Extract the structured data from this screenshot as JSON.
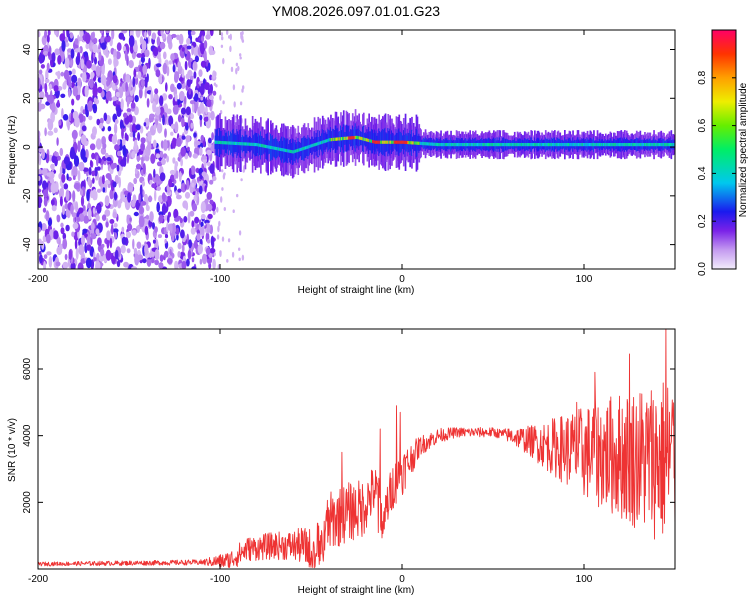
{
  "title": "YM08.2026.097.01.01.G23",
  "chart_data": [
    {
      "type": "heatmap",
      "name": "spectrogram",
      "xlabel": "Height of straight line (km)",
      "ylabel": "Frequency (Hz)",
      "xlim": [
        -200,
        150
      ],
      "ylim": [
        -50,
        48
      ],
      "xticks": [
        "-200",
        "-100",
        "0",
        "100"
      ],
      "xtick_values": [
        -200,
        -100,
        0,
        100
      ],
      "yticks": [
        "-40",
        "-20",
        "0",
        "20",
        "40"
      ],
      "ytick_values": [
        -40,
        -20,
        0,
        20,
        40
      ],
      "noise_region_end": -103,
      "signal_track": [
        [
          -103,
          2
        ],
        [
          -80,
          1
        ],
        [
          -60,
          -2
        ],
        [
          -40,
          3
        ],
        [
          -25,
          4
        ],
        [
          -15,
          2
        ],
        [
          0,
          2
        ],
        [
          20,
          1
        ],
        [
          60,
          1
        ],
        [
          100,
          1
        ],
        [
          150,
          1
        ]
      ],
      "colorbar": {
        "label": "Normalized spectral amplitude",
        "range": [
          0,
          1
        ],
        "ticks": [
          "0.0",
          "0.2",
          "0.4",
          "0.6",
          "0.8"
        ],
        "tick_values": [
          0,
          0.2,
          0.4,
          0.6,
          0.8
        ]
      }
    },
    {
      "type": "line",
      "name": "snr",
      "xlabel": "Height of straight line (km)",
      "ylabel": "SNR (10 * v/v)",
      "xlim": [
        -200,
        150
      ],
      "ylim": [
        0,
        7200
      ],
      "xticks": [
        "-200",
        "-100",
        "0",
        "100"
      ],
      "xtick_values": [
        -200,
        -100,
        0,
        100
      ],
      "yticks": [
        "2000",
        "4000",
        "6000"
      ],
      "ytick_values": [
        2000,
        4000,
        6000
      ],
      "color": "#ee3333",
      "envelope": [
        [
          -200,
          150
        ],
        [
          -110,
          200
        ],
        [
          -95,
          250
        ],
        [
          -85,
          600
        ],
        [
          -70,
          700
        ],
        [
          -55,
          700
        ],
        [
          -48,
          500
        ],
        [
          -40,
          1400
        ],
        [
          -30,
          1700
        ],
        [
          -22,
          1800
        ],
        [
          -15,
          2400
        ],
        [
          -10,
          1600
        ],
        [
          -5,
          2500
        ],
        [
          0,
          2900
        ],
        [
          5,
          3300
        ],
        [
          10,
          3700
        ],
        [
          20,
          4000
        ],
        [
          30,
          4100
        ],
        [
          50,
          4100
        ],
        [
          60,
          4000
        ],
        [
          80,
          3700
        ],
        [
          100,
          3500
        ],
        [
          120,
          3400
        ],
        [
          135,
          3300
        ],
        [
          150,
          3300
        ]
      ],
      "spread": [
        [
          -200,
          60
        ],
        [
          -110,
          80
        ],
        [
          -90,
          350
        ],
        [
          -60,
          450
        ],
        [
          -40,
          900
        ],
        [
          -22,
          900
        ],
        [
          -12,
          700
        ],
        [
          0,
          700
        ],
        [
          10,
          300
        ],
        [
          30,
          150
        ],
        [
          55,
          150
        ],
        [
          70,
          450
        ],
        [
          90,
          1100
        ],
        [
          110,
          1700
        ],
        [
          130,
          2200
        ],
        [
          150,
          2700
        ]
      ],
      "peaks": [
        [
          -33,
          3500
        ],
        [
          -12,
          4200
        ],
        [
          -3,
          4900
        ],
        [
          -1,
          4700
        ],
        [
          125,
          6450
        ],
        [
          145,
          7200
        ],
        [
          106,
          5900
        ],
        [
          96,
          5000
        ]
      ]
    }
  ]
}
